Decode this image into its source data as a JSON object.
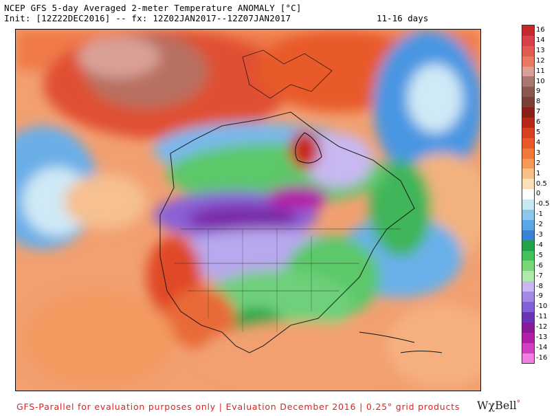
{
  "header": {
    "title": "NCEP GFS 5-day Averaged 2-meter Temperature ANOMALY [°C]",
    "init_line": "Init: [12Z22DEC2016] -- fx: 12Z02JAN2017--12Z07JAN2017",
    "range": "11-16 days"
  },
  "legend": {
    "items": [
      {
        "label": "16",
        "color": "#c8282c"
      },
      {
        "label": "14",
        "color": "#d8414a"
      },
      {
        "label": "13",
        "color": "#e05a4e"
      },
      {
        "label": "12",
        "color": "#e87a60"
      },
      {
        "label": "11",
        "color": "#d9a098"
      },
      {
        "label": "10",
        "color": "#a87870"
      },
      {
        "label": "9",
        "color": "#8a5a50"
      },
      {
        "label": "8",
        "color": "#7a4038"
      },
      {
        "label": "7",
        "color": "#8a2018"
      },
      {
        "label": "6",
        "color": "#b82818"
      },
      {
        "label": "5",
        "color": "#d84020"
      },
      {
        "label": "4",
        "color": "#e85a2a"
      },
      {
        "label": "3",
        "color": "#f07838"
      },
      {
        "label": "2",
        "color": "#f59a58"
      },
      {
        "label": "1",
        "color": "#f8c088"
      },
      {
        "label": "0.5",
        "color": "#fbe0b8"
      },
      {
        "label": "0",
        "color": "#ffffff"
      },
      {
        "label": "-0.5",
        "color": "#c8e8f4"
      },
      {
        "label": "-1",
        "color": "#8cc8ee"
      },
      {
        "label": "-2",
        "color": "#5aa6e6"
      },
      {
        "label": "-3",
        "color": "#3a82d4"
      },
      {
        "label": "-4",
        "color": "#22a24a"
      },
      {
        "label": "-5",
        "color": "#44c05a"
      },
      {
        "label": "-6",
        "color": "#78d878"
      },
      {
        "label": "-7",
        "color": "#b0eaa8"
      },
      {
        "label": "-8",
        "color": "#c8b8f0"
      },
      {
        "label": "-9",
        "color": "#a488e6"
      },
      {
        "label": "-10",
        "color": "#8260d8"
      },
      {
        "label": "-11",
        "color": "#6a34b8"
      },
      {
        "label": "-12",
        "color": "#8a1a98"
      },
      {
        "label": "-13",
        "color": "#b020a8"
      },
      {
        "label": "-14",
        "color": "#d040c0"
      },
      {
        "label": "-16",
        "color": "#f080e0"
      }
    ]
  },
  "footer": {
    "text": "GFS-Parallel for evaluation purposes only | Evaluation December 2016 | 0.25° grid products",
    "brand": "WχBell",
    "brand_mark": "°"
  }
}
